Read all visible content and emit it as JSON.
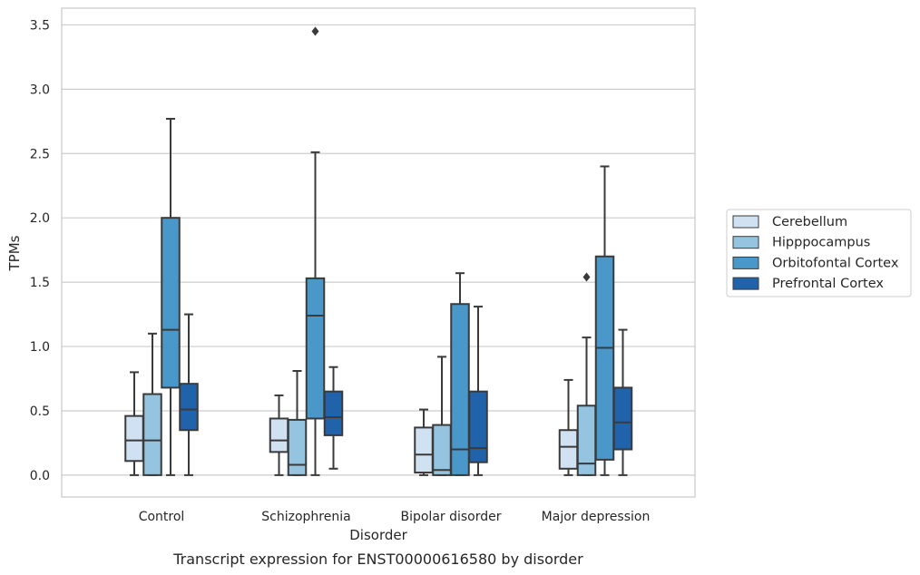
{
  "chart_data": {
    "type": "boxplot",
    "caption": "Transcript expression for ENST00000616580 by disorder",
    "xlabel": "Disorder",
    "ylabel": "TPMs",
    "ylim": [
      -0.17,
      3.63
    ],
    "yticks": [
      0.0,
      0.5,
      1.0,
      1.5,
      2.0,
      2.5,
      3.0,
      3.5
    ],
    "ytick_labels": [
      "0.0",
      "0.5",
      "1.0",
      "1.5",
      "2.0",
      "2.5",
      "3.0",
      "3.5"
    ],
    "grid": "horizontal",
    "legend_position": "right",
    "categories": [
      "Control",
      "Schizophrenia",
      "Bipolar disorder",
      "Major depression"
    ],
    "series": [
      {
        "name": "Cerebellum",
        "color": "#d0e1f2",
        "boxes": [
          {
            "min": 0.0,
            "q1": 0.11,
            "median": 0.27,
            "q3": 0.46,
            "max": 0.8,
            "outliers": []
          },
          {
            "min": 0.0,
            "q1": 0.18,
            "median": 0.27,
            "q3": 0.44,
            "max": 0.62,
            "outliers": []
          },
          {
            "min": 0.0,
            "q1": 0.02,
            "median": 0.16,
            "q3": 0.37,
            "max": 0.51,
            "outliers": []
          },
          {
            "min": 0.0,
            "q1": 0.05,
            "median": 0.22,
            "q3": 0.35,
            "max": 0.74,
            "outliers": []
          }
        ]
      },
      {
        "name": "Hipppocampus",
        "color": "#94c4df",
        "boxes": [
          {
            "min": 0.0,
            "q1": 0.0,
            "median": 0.27,
            "q3": 0.63,
            "max": 1.1,
            "outliers": []
          },
          {
            "min": 0.0,
            "q1": 0.0,
            "median": 0.08,
            "q3": 0.43,
            "max": 0.81,
            "outliers": []
          },
          {
            "min": 0.0,
            "q1": 0.0,
            "median": 0.04,
            "q3": 0.39,
            "max": 0.92,
            "outliers": []
          },
          {
            "min": 0.0,
            "q1": 0.0,
            "median": 0.09,
            "q3": 0.54,
            "max": 1.07,
            "outliers": [
              1.54
            ]
          }
        ]
      },
      {
        "name": "Orbitofontal Cortex",
        "color": "#4a98c9",
        "boxes": [
          {
            "min": 0.0,
            "q1": 0.68,
            "median": 1.13,
            "q3": 2.0,
            "max": 2.77,
            "outliers": []
          },
          {
            "min": 0.0,
            "q1": 0.44,
            "median": 1.24,
            "q3": 1.53,
            "max": 2.51,
            "outliers": [
              3.45
            ]
          },
          {
            "min": 0.0,
            "q1": 0.0,
            "median": 0.2,
            "q3": 1.33,
            "max": 1.57,
            "outliers": []
          },
          {
            "min": 0.0,
            "q1": 0.12,
            "median": 0.99,
            "q3": 1.7,
            "max": 2.4,
            "outliers": []
          }
        ]
      },
      {
        "name": "Prefrontal Cortex",
        "color": "#2163aa",
        "boxes": [
          {
            "min": 0.0,
            "q1": 0.35,
            "median": 0.51,
            "q3": 0.71,
            "max": 1.25,
            "outliers": []
          },
          {
            "min": 0.05,
            "q1": 0.31,
            "median": 0.45,
            "q3": 0.65,
            "max": 0.84,
            "outliers": []
          },
          {
            "min": 0.0,
            "q1": 0.1,
            "median": 0.21,
            "q3": 0.65,
            "max": 1.31,
            "outliers": []
          },
          {
            "min": 0.0,
            "q1": 0.2,
            "median": 0.41,
            "q3": 0.68,
            "max": 1.13,
            "outliers": []
          }
        ]
      }
    ]
  }
}
